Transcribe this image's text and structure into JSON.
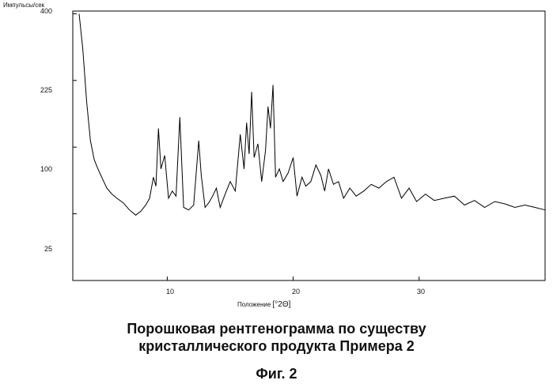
{
  "chart_data": {
    "type": "line",
    "title": "",
    "ylabel": "Импульсы/сек",
    "xlabel_text": "Положение",
    "xlabel_unit": "[°2Θ]",
    "yscale": "sqrt",
    "ylim": [
      0,
      400
    ],
    "xlim": [
      2.5,
      40
    ],
    "y_ticks": [
      25,
      100,
      225,
      400
    ],
    "x_ticks": [
      10,
      20,
      30
    ],
    "grid": false,
    "series": [
      {
        "x": [
          3.0,
          3.3,
          3.6,
          3.9,
          4.2,
          4.5,
          4.8,
          5.2,
          5.6,
          6.0,
          6.5,
          7.0,
          7.5,
          7.9,
          8.3,
          8.6,
          8.9,
          9.1,
          9.3,
          9.5,
          9.8,
          10.1,
          10.4,
          10.7,
          11.0,
          11.3,
          11.7,
          12.1,
          12.5,
          12.7,
          13.0,
          13.3,
          13.6,
          13.9,
          14.2,
          14.6,
          15.0,
          15.4,
          15.8,
          16.1,
          16.3,
          16.5,
          16.7,
          16.9,
          17.2,
          17.5,
          17.8,
          18.0,
          18.2,
          18.4,
          18.6,
          18.9,
          19.2,
          19.6,
          20.0,
          20.3,
          20.7,
          21.0,
          21.4,
          21.8,
          22.2,
          22.5,
          22.8,
          23.2,
          23.6,
          24.0,
          24.5,
          25.0,
          25.6,
          26.2,
          26.8,
          27.4,
          28.0,
          28.6,
          29.2,
          29.8,
          30.5,
          31.2,
          32.0,
          32.8,
          33.6,
          34.4,
          35.2,
          36.0,
          36.8,
          37.6,
          38.4,
          39.2,
          40.0
        ],
        "values": [
          400,
          300,
          180,
          110,
          82,
          70,
          60,
          48,
          42,
          38,
          34,
          28,
          24,
          27,
          32,
          38,
          60,
          50,
          130,
          70,
          88,
          38,
          45,
          40,
          150,
          30,
          28,
          32,
          110,
          62,
          30,
          34,
          40,
          48,
          30,
          42,
          55,
          45,
          120,
          70,
          140,
          90,
          200,
          85,
          105,
          55,
          95,
          170,
          130,
          215,
          60,
          70,
          55,
          65,
          85,
          40,
          60,
          50,
          55,
          75,
          62,
          45,
          70,
          52,
          55,
          38,
          48,
          40,
          45,
          52,
          48,
          55,
          60,
          38,
          48,
          35,
          42,
          36,
          38,
          40,
          32,
          36,
          30,
          35,
          33,
          30,
          32,
          30,
          28
        ]
      }
    ]
  },
  "caption": {
    "line1": "Порошковая рентгенограмма по существу",
    "line2": "кристаллического продукта Примера 2",
    "figure": "Фиг. 2"
  }
}
